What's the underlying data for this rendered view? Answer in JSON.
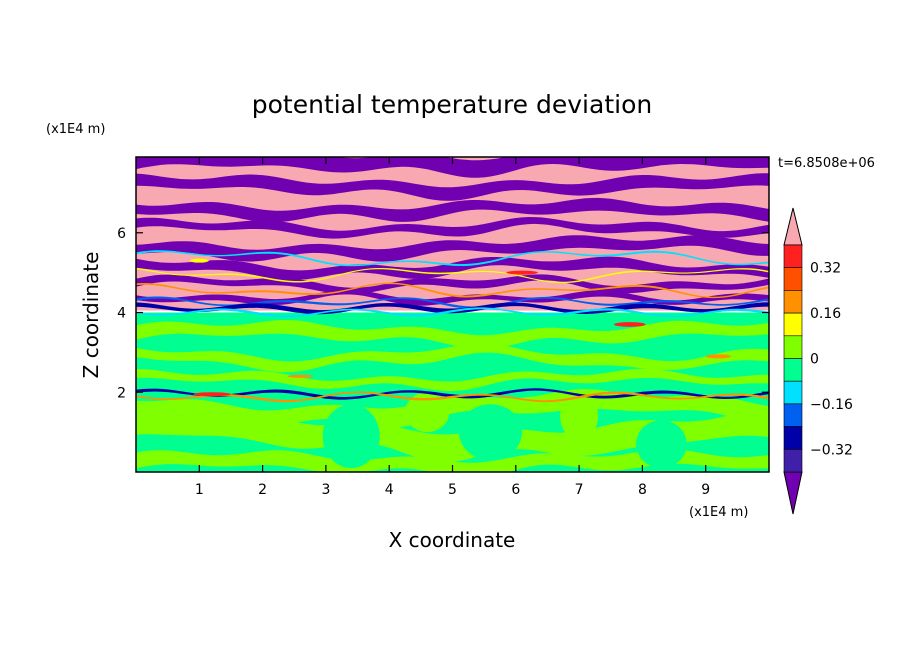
{
  "chart_data": {
    "type": "heatmap",
    "title": "potential temperature deviation",
    "xlabel": "X coordinate",
    "ylabel": "Z coordinate",
    "x_unit": "(x1E4 m)",
    "y_unit": "(x1E4 m)",
    "time_label": "t=6.8508e+06",
    "xlim": [
      0,
      10
    ],
    "ylim": [
      0,
      7.9
    ],
    "x_ticks": [
      "1",
      "2",
      "3",
      "4",
      "5",
      "6",
      "7",
      "8",
      "9"
    ],
    "y_ticks": [
      "2",
      "4",
      "6"
    ],
    "x_tick_values": [
      1,
      2,
      3,
      4,
      5,
      6,
      7,
      8,
      9
    ],
    "y_tick_values": [
      2,
      4,
      6
    ],
    "grid": false,
    "colorbar": {
      "levels": [
        -0.48,
        -0.4,
        -0.32,
        -0.24,
        -0.16,
        -0.08,
        0,
        0.08,
        0.16,
        0.24,
        0.32,
        0.4,
        0.48
      ],
      "colors": [
        "#7000b0",
        "#4020a8",
        "#0000a8",
        "#0060f0",
        "#00e0ff",
        "#00ff90",
        "#80ff00",
        "#ffff00",
        "#ff9000",
        "#ff5000",
        "#ff2020",
        "#f8a8b0"
      ],
      "under_color": "#7000b0",
      "over_color": "#f8a8b0",
      "tick_labels": [
        "0.32",
        "0.16",
        "0",
        "−0.16",
        "−0.32"
      ],
      "tick_values": [
        0.32,
        0.16,
        0,
        -0.16,
        -0.32
      ]
    },
    "field_regions": {
      "upper_z_range": [
        4.2,
        7.9
      ],
      "upper_description_colors": [
        "#7000b0",
        "#f8a8b0"
      ],
      "lower_z_range": [
        0,
        4.0
      ],
      "lower_description_colors": [
        "#00ff90",
        "#80ff00"
      ]
    }
  }
}
